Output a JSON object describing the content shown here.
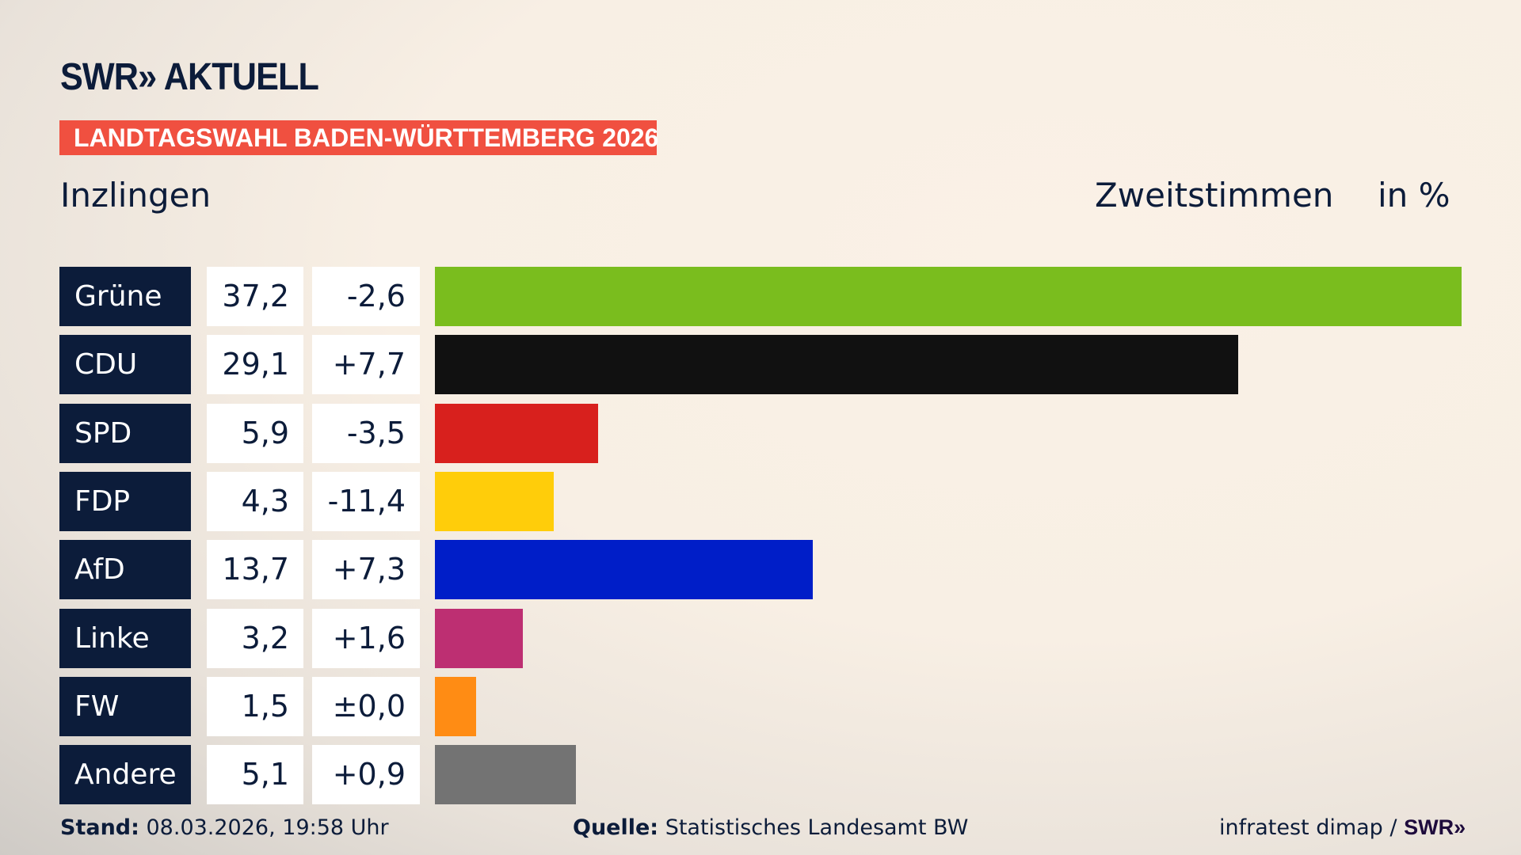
{
  "header": {
    "logo": "SWR» AKTUELL",
    "banner": "LANDTAGSWAHL BADEN-WÜRTTEMBERG 2026",
    "place": "Inzlingen",
    "metric": "Zweitstimmen",
    "unit": "in %"
  },
  "chart_data": {
    "type": "bar",
    "orientation": "horizontal",
    "categories": [
      "Grüne",
      "CDU",
      "SPD",
      "FDP",
      "AfD",
      "Linke",
      "FW",
      "Andere"
    ],
    "values": [
      37.2,
      29.1,
      5.9,
      4.3,
      13.7,
      3.2,
      1.5,
      5.1
    ],
    "value_labels": [
      "37,2",
      "29,1",
      "5,9",
      "4,3",
      "13,7",
      "3,2",
      "1,5",
      "5,1"
    ],
    "change_labels": [
      "-2,6",
      "+7,7",
      "-3,5",
      "-11,4",
      "+7,3",
      "+1,6",
      "±0,0",
      "+0,9"
    ],
    "changes": [
      -2.6,
      7.7,
      -3.5,
      -11.4,
      7.3,
      1.6,
      0.0,
      0.9
    ],
    "colors": [
      "#7abd1e",
      "#111111",
      "#d8201d",
      "#ffcd0a",
      "#001ec8",
      "#bd2f72",
      "#ff8c14",
      "#737373"
    ],
    "xlim": [
      0,
      37.2
    ],
    "grid": false,
    "legend": "none"
  },
  "footer": {
    "stand_label": "Stand:",
    "stand": " 08.03.2026, 19:58 Uhr",
    "source_label": "Quelle:",
    "source": " Statistisches Landesamt BW",
    "credit": "infratest dimap / ",
    "credit_logo": "SWR»"
  }
}
